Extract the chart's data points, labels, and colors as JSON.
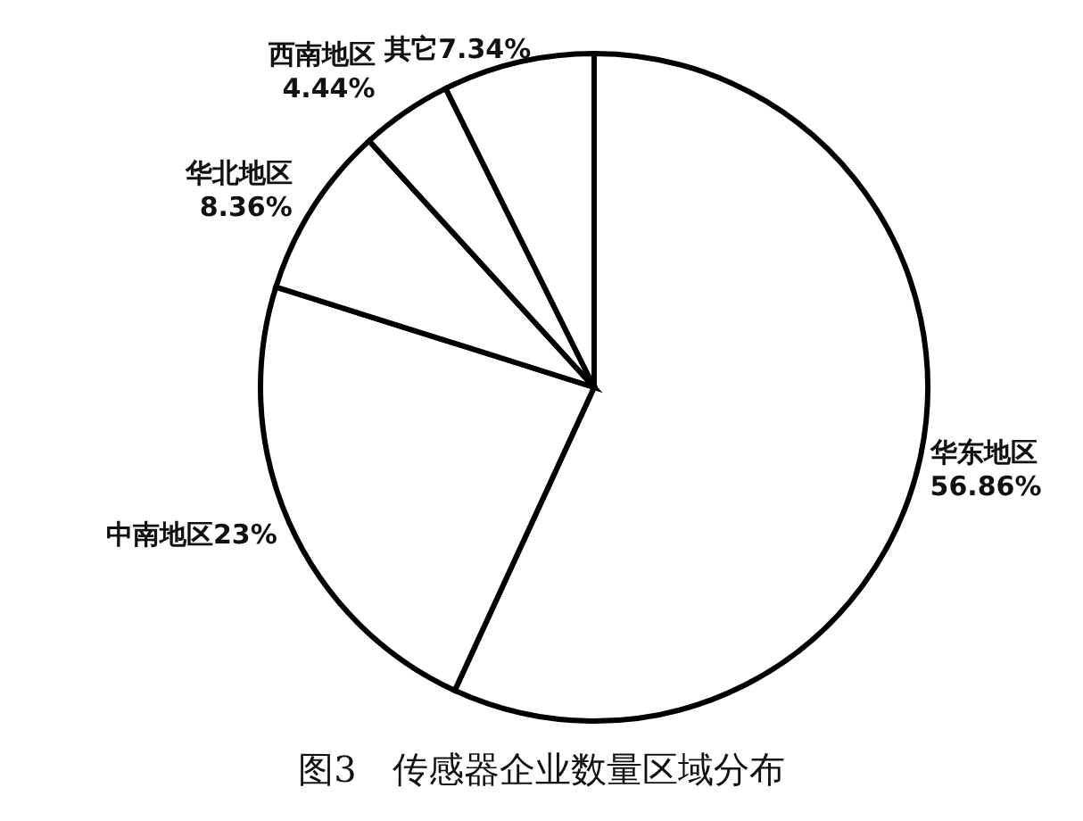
{
  "chart_data": {
    "type": "pie",
    "title": "图3　传感器企业数量区域分布",
    "categories": [
      "华东地区",
      "中南地区",
      "华北地区",
      "西南地区",
      "其它"
    ],
    "values": [
      56.86,
      23,
      8.36,
      4.44,
      7.34
    ],
    "value_labels": [
      "56.86%",
      "23%",
      "8.36%",
      "4.44%",
      "7.34%"
    ],
    "colors": [
      "#ffffff",
      "#ffffff",
      "#ffffff",
      "#ffffff",
      "#ffffff"
    ]
  }
}
